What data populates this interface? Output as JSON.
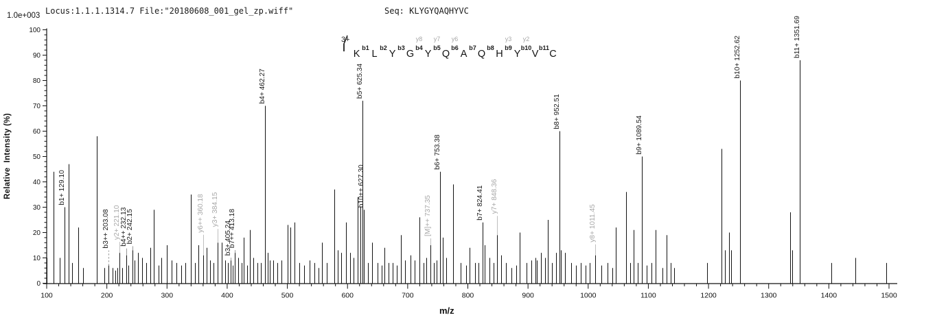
{
  "header": {
    "locus_file": "Locus:1.1.1.1314.7 File:\"20180608_001_gel_zp.wiff\"",
    "seq": "Seq: KLYGYQAQHYVC"
  },
  "scale_label": "1.0e+003",
  "peptide": {
    "charge": "3+",
    "residues": [
      "K",
      "L",
      "Y",
      "G",
      "Y",
      "Q",
      "A",
      "Q",
      "H",
      "Y",
      "V",
      "C"
    ],
    "b_ions": [
      "b1",
      "b2",
      "b3",
      "b4",
      "b5",
      "b6",
      "b7",
      "b8",
      "b9",
      "b10",
      "b11"
    ],
    "y_ions": [
      {
        "gap": 4,
        "label": "y8"
      },
      {
        "gap": 5,
        "label": "y7"
      },
      {
        "gap": 6,
        "label": "y6"
      },
      {
        "gap": 9,
        "label": "y3"
      },
      {
        "gap": 10,
        "label": "y2"
      }
    ]
  },
  "colors": {
    "peak": "#111111",
    "gray_label": "#a8a8a8",
    "black_label": "#1a1a1a",
    "axis": "#111111"
  },
  "chart_data": {
    "type": "bar",
    "subtype": "ms2-stick-spectrum",
    "title": "",
    "xlabel": "m/z",
    "ylabel": "Relative  Intensity (%)",
    "xlim": [
      100,
      1500
    ],
    "ylim": [
      0,
      100
    ],
    "x_major_step": 100,
    "x_minor_step": 20,
    "y_major_step": 10,
    "y_minor_step": 2,
    "grid": false,
    "peak_format": "[mz, intensity_pct, label, gray(0|1), leader_px, dashed(0|1)]",
    "peaks": [
      [
        100,
        10
      ],
      [
        111,
        44
      ],
      [
        122,
        10
      ],
      [
        129.1,
        30,
        "b1+ 129.10",
        0,
        0,
        0
      ],
      [
        136,
        47
      ],
      [
        142,
        8
      ],
      [
        153,
        22
      ],
      [
        160,
        6
      ],
      [
        183,
        58
      ],
      [
        196,
        6
      ],
      [
        203.08,
        7,
        "b3++ 203.08",
        0,
        22,
        1
      ],
      [
        210,
        6
      ],
      [
        214,
        5
      ],
      [
        218,
        6
      ],
      [
        221.1,
        12,
        "y2+ 221.10",
        1,
        16,
        0
      ],
      [
        226,
        6
      ],
      [
        232.13,
        11,
        "b4++ 232.13",
        0,
        10,
        0
      ],
      [
        236,
        7
      ],
      [
        242.15,
        13,
        "b2+ 242.15",
        0,
        6,
        0
      ],
      [
        246,
        9
      ],
      [
        252,
        12
      ],
      [
        259,
        10
      ],
      [
        266,
        8
      ],
      [
        272,
        14
      ],
      [
        278,
        29
      ],
      [
        286,
        7
      ],
      [
        291,
        10
      ],
      [
        300,
        15
      ],
      [
        308,
        9
      ],
      [
        316,
        8
      ],
      [
        324,
        7
      ],
      [
        331,
        8
      ],
      [
        340,
        35
      ],
      [
        347,
        8
      ],
      [
        352,
        15
      ],
      [
        360.18,
        11,
        "y6++ 360.18",
        1,
        30,
        0
      ],
      [
        366,
        14
      ],
      [
        371,
        9
      ],
      [
        377,
        8
      ],
      [
        384.15,
        16,
        "y3+ 384.15",
        1,
        20,
        0
      ],
      [
        391,
        16
      ],
      [
        397,
        9
      ],
      [
        401,
        8
      ],
      [
        405.24,
        9,
        "b3+ 405.24",
        0,
        4,
        0
      ],
      [
        409,
        7
      ],
      [
        413.18,
        12,
        "b7++ 413.18",
        0,
        4,
        0
      ],
      [
        418,
        10
      ],
      [
        424,
        8
      ],
      [
        428,
        18
      ],
      [
        433,
        7
      ],
      [
        438,
        21
      ],
      [
        444,
        10
      ],
      [
        450,
        8
      ],
      [
        456,
        8
      ],
      [
        462.27,
        70,
        "b4+ 462.27",
        0,
        0,
        0
      ],
      [
        467,
        12
      ],
      [
        471,
        9
      ],
      [
        476,
        9
      ],
      [
        483,
        8
      ],
      [
        490,
        9
      ],
      [
        500,
        23
      ],
      [
        505,
        22
      ],
      [
        512,
        24
      ],
      [
        520,
        8
      ],
      [
        528,
        7
      ],
      [
        537,
        9
      ],
      [
        545,
        8
      ],
      [
        552,
        6
      ],
      [
        558,
        16
      ],
      [
        566,
        8
      ],
      [
        578,
        37
      ],
      [
        584,
        13
      ],
      [
        590,
        12
      ],
      [
        598,
        24
      ],
      [
        604,
        12
      ],
      [
        610,
        10
      ],
      [
        617,
        34
      ],
      [
        621,
        30
      ],
      [
        625.34,
        72,
        "b5+ 625.34",
        0,
        0,
        0
      ],
      [
        627.3,
        29,
        "b10++ 627.30",
        0,
        0,
        0
      ],
      [
        634,
        8
      ],
      [
        641,
        16
      ],
      [
        650,
        8
      ],
      [
        657,
        7
      ],
      [
        661,
        14
      ],
      [
        668,
        8
      ],
      [
        675,
        8
      ],
      [
        682,
        7
      ],
      [
        689,
        19
      ],
      [
        696,
        9
      ],
      [
        705,
        11
      ],
      [
        712,
        9
      ],
      [
        720,
        26
      ],
      [
        726,
        8
      ],
      [
        731,
        10
      ],
      [
        737.35,
        15,
        "[M]++ 737.35",
        1,
        10,
        0
      ],
      [
        743,
        8
      ],
      [
        748,
        9
      ],
      [
        753.38,
        44,
        "b6+ 753.38",
        0,
        0,
        0
      ],
      [
        758,
        18
      ],
      [
        764,
        10
      ],
      [
        776,
        39
      ],
      [
        788,
        8
      ],
      [
        797,
        7
      ],
      [
        803,
        14
      ],
      [
        812,
        8
      ],
      [
        818,
        8
      ],
      [
        824.41,
        24,
        "b7+ 824.41",
        0,
        0,
        0
      ],
      [
        828,
        15
      ],
      [
        836,
        10
      ],
      [
        843,
        8
      ],
      [
        848.36,
        19,
        "y7+ 848.36",
        1,
        28,
        0
      ],
      [
        855,
        11
      ],
      [
        863,
        8
      ],
      [
        872,
        6
      ],
      [
        880,
        7
      ],
      [
        886,
        20
      ],
      [
        898,
        8
      ],
      [
        905,
        9
      ],
      [
        912,
        10
      ],
      [
        915,
        9
      ],
      [
        922,
        12
      ],
      [
        928,
        10
      ],
      [
        933,
        25
      ],
      [
        940,
        8
      ],
      [
        947,
        12
      ],
      [
        952.51,
        60,
        "b8+ 952.51",
        0,
        0,
        0
      ],
      [
        955,
        13
      ],
      [
        962,
        12
      ],
      [
        972,
        8
      ],
      [
        980,
        7
      ],
      [
        988,
        8
      ],
      [
        996,
        7
      ],
      [
        1003,
        8
      ],
      [
        1011.45,
        11,
        "y8+ 1011.45",
        1,
        16,
        0
      ],
      [
        1022,
        7
      ],
      [
        1032,
        8
      ],
      [
        1040,
        6
      ],
      [
        1046,
        22
      ],
      [
        1063,
        36
      ],
      [
        1070,
        8
      ],
      [
        1075,
        21
      ],
      [
        1082,
        8
      ],
      [
        1089.54,
        50,
        "b9+ 1089.54",
        0,
        0,
        0
      ],
      [
        1097,
        7
      ],
      [
        1105,
        8
      ],
      [
        1112,
        21
      ],
      [
        1124,
        6
      ],
      [
        1130,
        19
      ],
      [
        1137,
        8
      ],
      [
        1143,
        6
      ],
      [
        1198,
        8
      ],
      [
        1222,
        53
      ],
      [
        1227,
        13
      ],
      [
        1234,
        20
      ],
      [
        1238,
        13
      ],
      [
        1252.62,
        80,
        "b10+ 1252.62",
        0,
        0,
        0
      ],
      [
        1336,
        28
      ],
      [
        1339,
        13
      ],
      [
        1351.69,
        88,
        "b11+ 1351.69",
        0,
        0,
        0
      ],
      [
        1404,
        8
      ],
      [
        1444,
        10
      ],
      [
        1496,
        8
      ]
    ]
  }
}
